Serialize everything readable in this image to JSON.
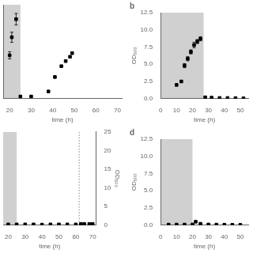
{
  "chart_data": [
    {
      "type": "scatter",
      "xlabel": "time (h)",
      "xlim": [
        17,
        72
      ],
      "xticks": [
        20,
        30,
        40,
        50,
        60,
        70
      ],
      "ylim": [
        0,
        13
      ],
      "tick_labels": "x",
      "grid": false,
      "shaded": {
        "x": [
          17,
          25
        ],
        "color": "#d0d0d0"
      },
      "x": [
        20,
        21,
        23,
        25,
        30,
        38,
        41,
        44,
        46,
        48,
        49
      ],
      "series": [
        {
          "values": [
            6.0,
            8.5,
            11.0,
            0.3,
            0.3,
            1.0,
            3.0,
            4.5,
            5.2,
            5.8,
            6.3
          ],
          "yerr": [
            0.5,
            0.7,
            0.8,
            0.0,
            0.0,
            0.0,
            0.0,
            0.0,
            0.0,
            0.0,
            0.0
          ],
          "color": "black",
          "marker": "square"
        }
      ]
    },
    {
      "type": "scatter",
      "title": "b",
      "xlabel": "time (h)",
      "ylabel": "OD₆₀₀",
      "xlim": [
        0,
        55
      ],
      "xticks": [
        0,
        10,
        20,
        30,
        40,
        50
      ],
      "ylim": [
        0,
        12.5
      ],
      "yticks": [
        {
          "value": 0,
          "label": "0.0"
        },
        2.5,
        {
          "value": 5,
          "label": "5.0"
        },
        7.5,
        {
          "value": 10,
          "label": "10.0"
        },
        12.5
      ],
      "grid": false,
      "shaded": {
        "x": [
          0,
          27
        ],
        "color": "#d0d0d0"
      },
      "x": [
        10,
        13,
        15,
        17,
        19,
        21,
        23,
        25,
        28,
        32,
        37,
        42,
        47,
        52
      ],
      "series": [
        {
          "values": [
            2.0,
            2.5,
            4.8,
            5.8,
            6.8,
            7.8,
            8.3,
            8.7,
            0.2,
            0.15,
            0.1,
            0.1,
            0.08,
            0.05
          ],
          "yerr": [
            0.0,
            0.0,
            0.3,
            0.3,
            0.3,
            0.4,
            0.3,
            0.3,
            0.0,
            0.0,
            0.0,
            0.0,
            0.0,
            0.0
          ],
          "color": "black",
          "marker": "square"
        }
      ]
    },
    {
      "type": "scatter",
      "xlabel": "time (h)",
      "y2label": "OD₆₀₀",
      "xlim": [
        17,
        72
      ],
      "xticks": [
        20,
        30,
        40,
        50,
        60,
        70
      ],
      "y2lim": [
        0,
        25
      ],
      "y2ticks": [
        0,
        5,
        10,
        15,
        20,
        25
      ],
      "grid": false,
      "shaded": {
        "x": [
          17,
          25
        ],
        "color": "#d0d0d0"
      },
      "vline": {
        "x": 62,
        "color": "gray",
        "line_style": "dotted"
      },
      "x": [
        20,
        25,
        30,
        35,
        40,
        45,
        50,
        55,
        60,
        63,
        65,
        68,
        70
      ],
      "series": [
        {
          "values": [
            0.2,
            0.2,
            0.2,
            0.2,
            0.15,
            0.2,
            0.2,
            0.2,
            0.2,
            0.3,
            0.3,
            0.3,
            0.3
          ],
          "yerr": [
            0.0,
            0.0,
            0.0,
            0.0,
            0.0,
            0.0,
            0.0,
            0.0,
            0.0,
            0.0,
            0.0,
            0.0,
            0.0
          ],
          "axis": "y2",
          "color": "black",
          "marker": "square"
        }
      ]
    },
    {
      "type": "scatter",
      "title": "d",
      "xlabel": "time (h)",
      "ylabel": "OD₆₀₀",
      "xlim": [
        0,
        55
      ],
      "xticks": [
        0,
        10,
        20,
        30,
        40,
        50
      ],
      "ylim": [
        0,
        12.5
      ],
      "yticks": [
        {
          "value": 0,
          "label": "0.0"
        },
        2.5,
        {
          "value": 5,
          "label": "5.0"
        },
        7.5,
        {
          "value": 10,
          "label": "10.0"
        },
        12.5
      ],
      "grid": false,
      "shaded": {
        "x": [
          0,
          20
        ],
        "color": "#d0d0d0"
      },
      "x": [
        5,
        10,
        15,
        20,
        22,
        25,
        30,
        35,
        40,
        45,
        50
      ],
      "series": [
        {
          "values": [
            0.08,
            0.08,
            0.08,
            0.1,
            0.5,
            0.2,
            0.1,
            0.08,
            0.07,
            0.06,
            0.05
          ],
          "yerr": [
            0.0,
            0.0,
            0.0,
            0.0,
            0.0,
            0.0,
            0.0,
            0.0,
            0.0,
            0.0,
            0.0
          ],
          "color": "black",
          "marker": "square"
        }
      ]
    }
  ]
}
